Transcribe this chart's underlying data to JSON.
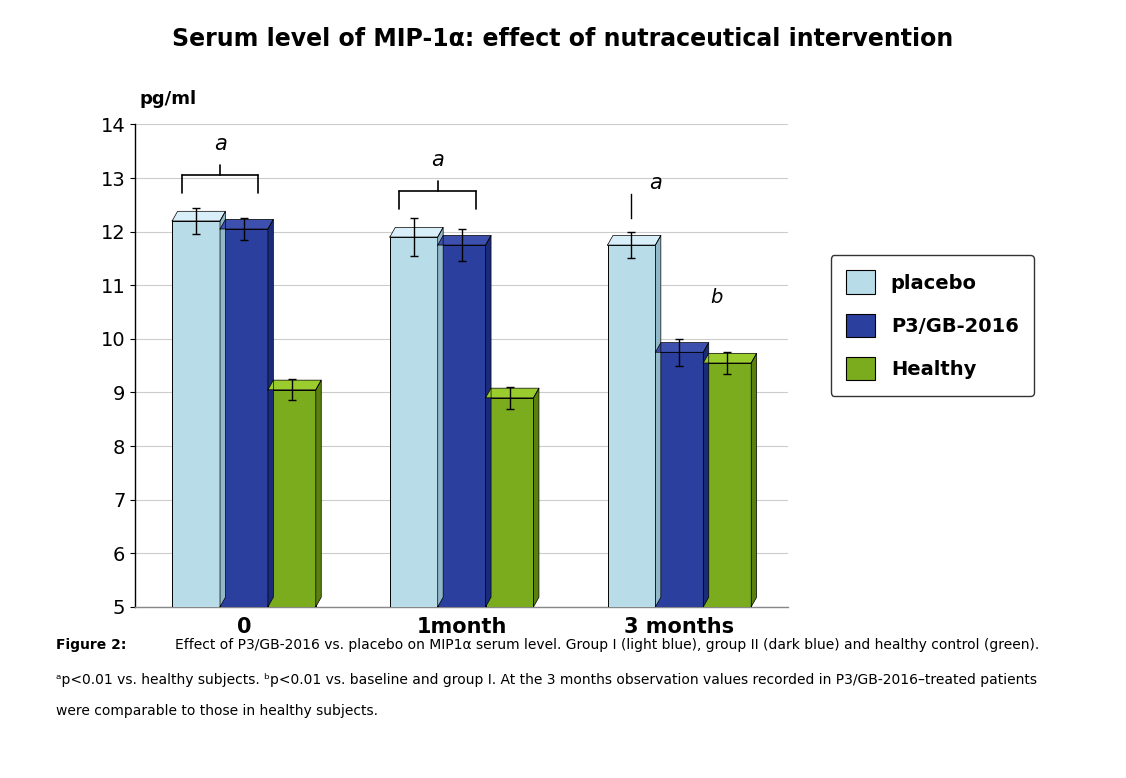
{
  "title": "Serum level of MIP-1α: effect of nutraceutical intervention",
  "ylabel": "pg/ml",
  "categories": [
    "0",
    "1month",
    "3 months"
  ],
  "series": {
    "placebo": [
      12.2,
      11.9,
      11.75
    ],
    "p3gb2016": [
      12.05,
      11.75,
      9.75
    ],
    "healthy": [
      9.05,
      8.9,
      9.55
    ]
  },
  "errors": {
    "placebo": [
      0.25,
      0.35,
      0.25
    ],
    "p3gb2016": [
      0.2,
      0.3,
      0.25
    ],
    "healthy": [
      0.2,
      0.2,
      0.2
    ]
  },
  "colors": {
    "placebo": "#B8DCE8",
    "placebo_top": "#D8EEF8",
    "placebo_side": "#90B8C8",
    "p3gb2016": "#2B3F9E",
    "p3gb2016_top": "#3D50AE",
    "p3gb2016_side": "#1A2B7A",
    "healthy": "#7BAC1E",
    "healthy_top": "#9ACC2E",
    "healthy_side": "#5A8010"
  },
  "ylim": [
    5,
    14
  ],
  "yticks": [
    5,
    6,
    7,
    8,
    9,
    10,
    11,
    12,
    13,
    14
  ],
  "caption_bold": "Figure 2:",
  "caption_rest": " Effect of P3/GB-2016 vs. placebo on MIP1α serum level. Group I (light blue), group II (dark blue) and healthy control (green).\nᵃp<0.01 vs. healthy subjects. ᵇp<0.01 vs. baseline and group I. At the 3 months observation values recorded in P3/GB-2016–treated patients\nwere comparable to those in healthy subjects."
}
